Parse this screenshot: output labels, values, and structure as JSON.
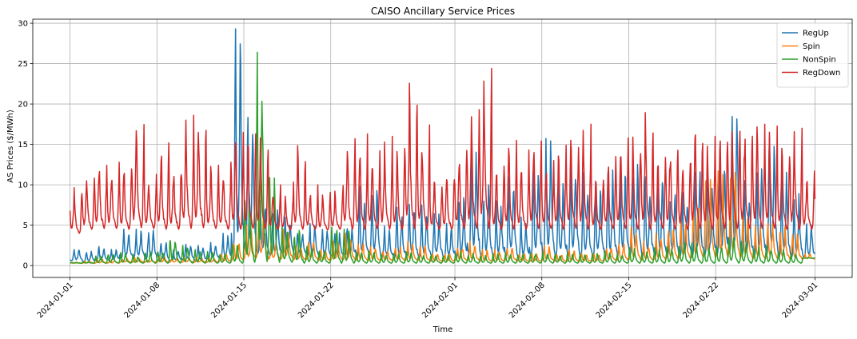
{
  "chart_data": {
    "type": "line",
    "title": "CAISO Ancillary Service Prices",
    "xlabel": "Time",
    "ylabel": "AS Prices ($/MWh)",
    "x_start": "2024-01-01",
    "x_end": "2024-03-01",
    "xlim": [
      "2023-12-29",
      "2024-03-04"
    ],
    "ylim": [
      -1.47,
      30.5
    ],
    "x_ticks": [
      "2024-01-01",
      "2024-01-08",
      "2024-01-15",
      "2024-01-22",
      "2024-02-01",
      "2024-02-08",
      "2024-02-15",
      "2024-02-22",
      "2024-03-01"
    ],
    "y_ticks": [
      0,
      5,
      10,
      15,
      20,
      25,
      30
    ],
    "grid": true,
    "legend_position": "top-right",
    "series": [
      {
        "name": "RegUp",
        "color": "#1f77b4",
        "daily_peak": [
          2.2,
          1.8,
          2.5,
          2.0,
          4.8,
          4.5,
          5.0,
          3.2,
          2.0,
          2.8,
          2.6,
          3.0,
          4.0,
          29.3,
          20.0,
          8.0,
          7.5,
          6.0,
          4.5,
          5.2,
          4.8,
          4.2,
          5.0,
          9.8,
          10.0,
          5.0,
          7.2,
          8.2,
          7.5,
          6.5,
          5.2,
          8.8,
          16.6,
          10.2,
          8.5,
          12.0,
          6.0,
          13.5,
          16.3,
          11.0,
          14.8,
          11.5,
          11.0,
          12.8,
          12.5,
          13.4,
          11.0,
          12.0,
          9.8,
          9.5,
          13.3,
          12.0,
          14.8,
          20.0,
          10.5,
          13.7,
          17.0,
          12.0,
          9.0,
          5.5,
          5.0
        ],
        "daily_trough": [
          0.6,
          0.5,
          0.6,
          0.7,
          0.9,
          1.0,
          0.8,
          0.6,
          0.6,
          0.7,
          0.6,
          0.8,
          0.9,
          1.5,
          1.8,
          1.5,
          1.2,
          1.5,
          1.3,
          1.2,
          1.0,
          1.1,
          1.2,
          1.0,
          1.2,
          1.0,
          0.9,
          1.1,
          1.0,
          1.2,
          1.0,
          1.0,
          1.3,
          1.1,
          1.0,
          1.2,
          1.0,
          1.2,
          1.3,
          1.1,
          1.2,
          1.0,
          1.1,
          1.0,
          1.2,
          1.3,
          1.1,
          1.0,
          1.2,
          1.1,
          1.0,
          1.2,
          1.3,
          1.5,
          1.2,
          1.1,
          1.3,
          1.0,
          1.0,
          1.0,
          1.0
        ]
      },
      {
        "name": "Spin",
        "color": "#ff7f0e",
        "daily_peak": [
          0.4,
          0.6,
          0.8,
          0.7,
          0.9,
          1.0,
          0.8,
          1.2,
          0.9,
          1.0,
          1.1,
          1.0,
          1.5,
          3.0,
          5.0,
          7.0,
          3.0,
          4.5,
          2.5,
          3.5,
          2.0,
          3.0,
          4.0,
          3.0,
          2.5,
          2.0,
          2.5,
          3.0,
          2.5,
          1.5,
          1.5,
          2.5,
          3.0,
          2.0,
          2.0,
          2.5,
          1.5,
          1.5,
          2.5,
          1.5,
          2.0,
          1.5,
          1.5,
          2.5,
          3.0,
          5.0,
          3.0,
          4.0,
          5.0,
          6.0,
          8.0,
          11.0,
          12.5,
          12.0,
          7.0,
          5.0,
          6.0,
          5.0,
          4.0,
          1.5,
          1.0
        ],
        "daily_trough": [
          0.3,
          0.3,
          0.3,
          0.3,
          0.4,
          0.4,
          0.4,
          0.4,
          0.4,
          0.4,
          0.4,
          0.4,
          0.5,
          0.6,
          0.8,
          1.0,
          0.8,
          0.8,
          0.7,
          0.7,
          0.6,
          0.7,
          0.7,
          0.6,
          0.6,
          0.6,
          0.6,
          0.6,
          0.6,
          0.5,
          0.5,
          0.6,
          0.6,
          0.5,
          0.5,
          0.6,
          0.5,
          0.5,
          0.6,
          0.5,
          0.5,
          0.5,
          0.5,
          0.6,
          0.6,
          0.7,
          0.6,
          0.7,
          0.8,
          0.8,
          1.0,
          1.0,
          1.0,
          1.0,
          0.9,
          0.8,
          0.8,
          0.8,
          0.8,
          0.8,
          0.9
        ]
      },
      {
        "name": "NonSpin",
        "color": "#2ca02c",
        "daily_peak": [
          0.4,
          0.5,
          1.2,
          1.5,
          1.6,
          1.4,
          1.8,
          2.0,
          4.0,
          2.5,
          2.0,
          1.8,
          1.5,
          3.0,
          10.5,
          26.4,
          12.0,
          5.0,
          4.5,
          2.5,
          2.0,
          5.0,
          4.5,
          2.0,
          1.8,
          1.5,
          1.5,
          1.8,
          1.5,
          1.4,
          1.4,
          1.8,
          1.6,
          1.4,
          1.5,
          1.6,
          1.5,
          1.6,
          1.8,
          1.5,
          1.6,
          1.5,
          1.5,
          1.8,
          1.6,
          2.2,
          1.8,
          2.2,
          2.5,
          3.0,
          2.8,
          2.5,
          2.8,
          4.0,
          3.0,
          2.5,
          2.5,
          2.0,
          1.5,
          1.0,
          1.0
        ],
        "daily_trough": [
          0.3,
          0.3,
          0.3,
          0.3,
          0.3,
          0.3,
          0.3,
          0.3,
          0.3,
          0.3,
          0.3,
          0.3,
          0.3,
          0.3,
          0.4,
          0.5,
          0.4,
          0.4,
          0.3,
          0.3,
          0.3,
          0.3,
          0.3,
          0.3,
          0.3,
          0.3,
          0.3,
          0.3,
          0.3,
          0.3,
          0.3,
          0.3,
          0.3,
          0.3,
          0.3,
          0.3,
          0.3,
          0.3,
          0.3,
          0.3,
          0.3,
          0.3,
          0.3,
          0.3,
          0.3,
          0.3,
          0.3,
          0.3,
          0.3,
          0.3,
          0.3,
          0.3,
          0.3,
          0.3,
          0.3,
          0.3,
          0.3,
          0.3,
          0.3,
          0.9,
          1.0
        ]
      },
      {
        "name": "RegDown",
        "color": "#d62728",
        "daily_peak": [
          10.0,
          11.7,
          13.7,
          12.8,
          13.0,
          17.8,
          11.5,
          15.2,
          13.1,
          18.6,
          20.0,
          13.0,
          12.8,
          16.5,
          16.3,
          16.4,
          10.0,
          9.0,
          15.0,
          10.0,
          9.5,
          9.3,
          15.7,
          16.3,
          14.2,
          16.0,
          14.5,
          22.9,
          18.0,
          11.3,
          12.0,
          15.0,
          19.3,
          24.4,
          12.5,
          15.5,
          14.3,
          16.5,
          13.0,
          15.0,
          16.5,
          17.5,
          11.5,
          13.5,
          15.8,
          16.2,
          19.6,
          13.5,
          15.8,
          14.3,
          18.5,
          16.0,
          17.2,
          18.5,
          17.8,
          18.1,
          17.8,
          15.3,
          17.0,
          11.7,
          11.0
        ],
        "daily_trough": [
          4.0,
          4.5,
          4.6,
          4.6,
          4.5,
          4.7,
          4.6,
          4.5,
          4.5,
          4.6,
          4.7,
          4.6,
          4.5,
          4.5,
          4.6,
          4.6,
          4.5,
          4.4,
          4.5,
          4.5,
          4.4,
          4.5,
          4.5,
          4.5,
          4.6,
          4.5,
          4.5,
          4.6,
          4.5,
          4.5,
          4.5,
          4.6,
          4.6,
          4.6,
          4.5,
          4.5,
          4.5,
          4.6,
          4.6,
          4.5,
          4.6,
          4.5,
          4.5,
          4.6,
          4.6,
          4.5,
          4.5,
          4.6,
          4.5,
          4.5,
          4.6,
          4.5,
          4.6,
          4.6,
          4.6,
          4.6,
          4.6,
          4.5,
          4.5,
          4.5,
          5.0
        ]
      }
    ]
  }
}
